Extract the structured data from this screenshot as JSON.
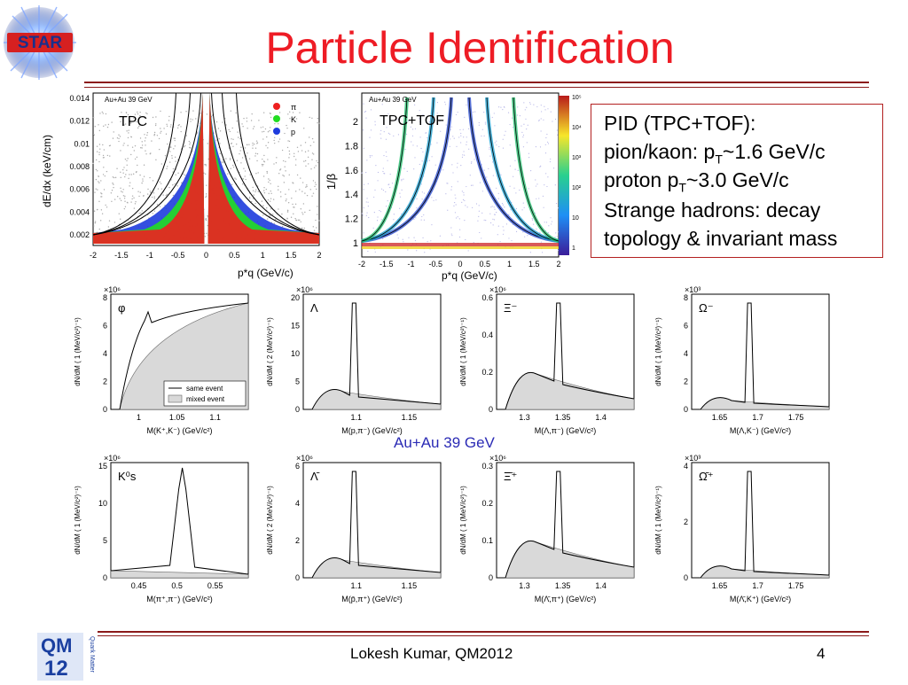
{
  "slide": {
    "title": "Particle Identification",
    "footer": "Lokesh Kumar, QM2012",
    "page_number": "4",
    "accent_color": "#ee1c25",
    "rule_color": "#8b1a1a"
  },
  "logos": {
    "star": {
      "text": "STAR",
      "icon": "star-logo-icon"
    },
    "qm": {
      "text": "QM 12",
      "side_text": "Quark Matter",
      "icon": "qm2012-logo-icon"
    }
  },
  "pid_box": {
    "line1": "PID (TPC+TOF):",
    "line2_pre": "pion/kaon: p",
    "line2_sub": "T",
    "line2_post": "~1.6 GeV/c",
    "line3_pre": "proton p",
    "line3_sub": "T",
    "line3_post": "~3.0 GeV/c",
    "line4": "Strange hadrons: decay",
    "line5": "topology & invariant mass"
  },
  "middle_label": "Au+Au 39 GeV",
  "tpc_plot": {
    "corner_text": "Au+Au 39 GeV",
    "label": "TPC",
    "ylabel": "dE/dx (keV/cm)",
    "xlabel": "p*q (GeV/c)",
    "yticks": [
      "0.014",
      "0.012",
      "0.01",
      "0.008",
      "0.006",
      "0.004",
      "0.002"
    ],
    "xticks": [
      "-2",
      "-1.5",
      "-1",
      "-0.5",
      "0",
      "0.5",
      "1",
      "1.5",
      "2"
    ],
    "legend": [
      {
        "name": "π",
        "color": "#ee2020"
      },
      {
        "name": "K",
        "color": "#22dd22"
      },
      {
        "name": "p",
        "color": "#1e3cdd"
      }
    ]
  },
  "tof_plot": {
    "corner_text": "Au+Au 39 GeV",
    "label": "TPC+TOF",
    "ylabel": "1/β",
    "xlabel": "p*q (GeV/c)",
    "yticks": [
      "2",
      "1.8",
      "1.6",
      "1.4",
      "1.2",
      "1"
    ],
    "xticks": [
      "-2",
      "-1.5",
      "-1",
      "-0.5",
      "0",
      "0.5",
      "1",
      "1.5",
      "2"
    ],
    "zticks": [
      "10⁵",
      "10⁴",
      "10³",
      "10²",
      "10",
      "1"
    ]
  },
  "mass_plots": [
    {
      "id": "phi",
      "particle": "φ",
      "scale": "×10⁶",
      "ylabel": "dN/dM ( 1 (MeV/c²)⁻¹)",
      "xlabel": "M(K⁺,K⁻) (GeV/c²)",
      "yticks": [
        "8",
        "6",
        "4",
        "2",
        "0"
      ],
      "xticks": [
        "1",
        "1.05",
        "1.1"
      ],
      "legend": [
        "same event",
        "mixed event"
      ]
    },
    {
      "id": "lambda",
      "particle": "Λ",
      "scale": "×10⁶",
      "ylabel": "dN/dM ( 2 (MeV/c²)⁻¹)",
      "xlabel": "M(p,π⁻) (GeV/c²)",
      "yticks": [
        "20",
        "15",
        "10",
        "5",
        "0"
      ],
      "xticks": [
        "1.1",
        "1.15"
      ]
    },
    {
      "id": "xi",
      "particle": "Ξ⁻",
      "scale": "×10⁶",
      "ylabel": "dN/dM ( 1 (MeV/c²)⁻¹)",
      "xlabel": "M(Λ,π⁻) (GeV/c²)",
      "yticks": [
        "0.6",
        "0.4",
        "0.2",
        "0"
      ],
      "xticks": [
        "1.3",
        "1.35",
        "1.4"
      ]
    },
    {
      "id": "omega",
      "particle": "Ω⁻",
      "scale": "×10³",
      "ylabel": "dN/dM ( 1 (MeV/c²)⁻¹)",
      "xlabel": "M(Λ,K⁻) (GeV/c²)",
      "yticks": [
        "8",
        "6",
        "4",
        "2",
        "0"
      ],
      "xticks": [
        "1.65",
        "1.7",
        "1.75"
      ]
    },
    {
      "id": "k0s",
      "particle": "K⁰s",
      "scale": "×10⁶",
      "ylabel": "dN/dM ( 1 (MeV/c²)⁻¹)",
      "xlabel": "M(π⁺,π⁻) (GeV/c²)",
      "yticks": [
        "15",
        "10",
        "5",
        "0"
      ],
      "xticks": [
        "0.45",
        "0.5",
        "0.55"
      ]
    },
    {
      "id": "antilambda",
      "particle": "Λ̄",
      "scale": "×10⁶",
      "ylabel": "dN/dM ( 2 (MeV/c²)⁻¹)",
      "xlabel": "M(p̄,π⁺) (GeV/c²)",
      "yticks": [
        "6",
        "4",
        "2",
        "0"
      ],
      "xticks": [
        "1.1",
        "1.15"
      ]
    },
    {
      "id": "antixi",
      "particle": "Ξ̄⁺",
      "scale": "×10⁶",
      "ylabel": "dN/dM ( 1 (MeV/c²)⁻¹)",
      "xlabel": "M(Λ̄,π⁺) (GeV/c²)",
      "yticks": [
        "0.3",
        "0.2",
        "0.1",
        "0"
      ],
      "xticks": [
        "1.3",
        "1.35",
        "1.4"
      ]
    },
    {
      "id": "antiomega",
      "particle": "Ω̄⁺",
      "scale": "×10³",
      "ylabel": "dN/dM ( 1 (MeV/c²)⁻¹)",
      "xlabel": "M(Λ̄,K⁺) (GeV/c²)",
      "yticks": [
        "4",
        "2",
        "0"
      ],
      "xticks": [
        "1.65",
        "1.7",
        "1.75"
      ]
    }
  ]
}
